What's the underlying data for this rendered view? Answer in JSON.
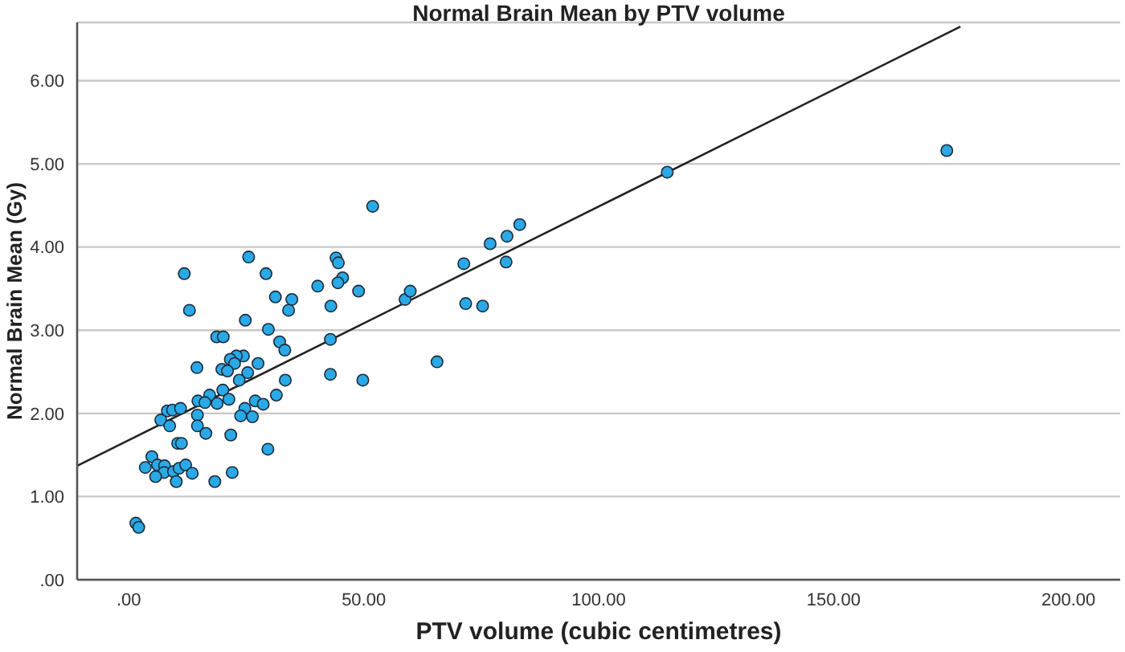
{
  "chart_data": {
    "type": "scatter",
    "title": "Normal Brain Mean by PTV volume",
    "xlabel": "PTV volume (cubic centimetres)",
    "ylabel": "Normal Brain Mean (Gy)",
    "xlim": [
      -11,
      211
    ],
    "ylim": [
      0,
      6.7
    ],
    "xticks": [
      {
        "value": 0,
        "label": ".00"
      },
      {
        "value": 50,
        "label": "50.00"
      },
      {
        "value": 100,
        "label": "100.00"
      },
      {
        "value": 150,
        "label": "150.00"
      },
      {
        "value": 200,
        "label": "200.00"
      }
    ],
    "yticks": [
      {
        "value": 0,
        "label": ".00"
      },
      {
        "value": 1,
        "label": "1.00"
      },
      {
        "value": 2,
        "label": "2.00"
      },
      {
        "value": 3,
        "label": "3.00"
      },
      {
        "value": 4,
        "label": "4.00"
      },
      {
        "value": 5,
        "label": "5.00"
      },
      {
        "value": 6,
        "label": "6.00"
      }
    ],
    "grid": "y",
    "legend": false,
    "series": [
      {
        "color": "#2aa9e6",
        "marker": "circle",
        "x": [
          51.9,
          25.5,
          29.2,
          44.1,
          44.6,
          45.5,
          44.5,
          40.2,
          48.9,
          31.2,
          34.7,
          34.0,
          43.0,
          24.8,
          29.7,
          32.1,
          33.2,
          42.9,
          24.4,
          27.5,
          25.3,
          42.9,
          33.3,
          49.8,
          65.6,
          31.4,
          26.9,
          28.6,
          24.7,
          26.3,
          23.8,
          29.6,
          58.8,
          59.9,
          71.3,
          76.9,
          80.5,
          83.2,
          80.3,
          71.7,
          75.3,
          114.6,
          174.1,
          11.8,
          12.9,
          18.7,
          20.1,
          22.9,
          21.6,
          22.5,
          19.8,
          21.0,
          14.5,
          23.5,
          20.0,
          17.2,
          14.7,
          16.2,
          18.8,
          21.3,
          14.6,
          8.2,
          9.3,
          11.0,
          6.8,
          8.7,
          14.6,
          16.4,
          21.7,
          10.4,
          11.2,
          4.9,
          3.5,
          6.1,
          7.6,
          7.5,
          5.7,
          9.5,
          10.7,
          12.1,
          10.1,
          13.5,
          18.3,
          22.0,
          1.5,
          2.1
        ],
        "values": [
          4.49,
          3.88,
          3.68,
          3.87,
          3.81,
          3.63,
          3.57,
          3.53,
          3.47,
          3.4,
          3.37,
          3.24,
          3.29,
          3.12,
          3.01,
          2.86,
          2.76,
          2.89,
          2.69,
          2.6,
          2.49,
          2.47,
          2.4,
          2.4,
          2.62,
          2.22,
          2.15,
          2.11,
          2.06,
          1.96,
          1.97,
          1.57,
          3.37,
          3.47,
          3.8,
          4.04,
          4.13,
          4.27,
          3.82,
          3.32,
          3.29,
          4.9,
          5.16,
          3.68,
          3.24,
          2.92,
          2.92,
          2.69,
          2.65,
          2.6,
          2.53,
          2.51,
          2.55,
          2.4,
          2.28,
          2.22,
          2.15,
          2.13,
          2.12,
          2.17,
          1.98,
          2.03,
          2.04,
          2.06,
          1.92,
          1.85,
          1.85,
          1.76,
          1.74,
          1.64,
          1.64,
          1.48,
          1.35,
          1.38,
          1.37,
          1.29,
          1.24,
          1.3,
          1.34,
          1.38,
          1.18,
          1.28,
          1.18,
          1.29,
          0.68,
          0.63
        ]
      },
      {
        "type": "line",
        "color": "#222222",
        "marker": "none",
        "line_style": "solid",
        "x": [
          -11,
          177
        ],
        "values": [
          1.37,
          6.65
        ]
      }
    ]
  }
}
